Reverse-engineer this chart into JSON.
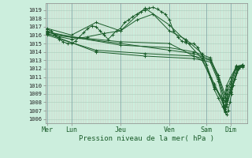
{
  "bg_color": "#cceedd",
  "grid_color_major": "#aaccbb",
  "grid_color_minor": "#ffcccc",
  "line_color": "#1a5c2a",
  "xlabel": "Pression niveau de la mer( hPa )",
  "xtick_labels": [
    "Mer",
    "Lun",
    "Jeu",
    "Ven",
    "Sam",
    "Dim"
  ],
  "xtick_positions": [
    0,
    30,
    90,
    150,
    195,
    225
  ],
  "ylim": [
    1005.5,
    1019.8
  ],
  "xlim": [
    -2,
    245
  ],
  "yticks": [
    1006,
    1007,
    1008,
    1009,
    1010,
    1011,
    1012,
    1013,
    1014,
    1015,
    1016,
    1017,
    1018,
    1019
  ],
  "lines": [
    [
      0,
      1016.7,
      5,
      1016.5,
      10,
      1016.0,
      15,
      1015.5,
      20,
      1015.2,
      25,
      1015.0,
      30,
      1015.0,
      35,
      1015.3,
      40,
      1015.8,
      45,
      1016.3,
      50,
      1016.8,
      55,
      1017.1,
      60,
      1017.0,
      65,
      1016.5,
      70,
      1016.0,
      75,
      1015.5,
      80,
      1016.0,
      85,
      1016.5,
      90,
      1016.8,
      95,
      1017.5,
      100,
      1017.8,
      105,
      1018.2,
      110,
      1018.5,
      115,
      1018.8,
      120,
      1019.0,
      125,
      1019.2,
      130,
      1019.3,
      135,
      1019.1,
      140,
      1018.8,
      145,
      1018.5,
      150,
      1017.8,
      155,
      1016.5,
      160,
      1015.8,
      165,
      1015.3,
      170,
      1015.1,
      175,
      1015.0,
      180,
      1015.0,
      185,
      1014.5,
      190,
      1013.5,
      195,
      1012.5,
      200,
      1011.0,
      205,
      1009.5,
      210,
      1008.5,
      215,
      1007.5,
      218,
      1006.8,
      220,
      1006.5,
      222,
      1007.0,
      224,
      1008.0,
      226,
      1009.0,
      228,
      1010.0,
      230,
      1010.8,
      232,
      1011.5,
      234,
      1012.0,
      236,
      1012.2,
      240,
      1012.3
    ],
    [
      0,
      1016.5,
      15,
      1015.8,
      30,
      1015.5,
      50,
      1015.8,
      70,
      1016.2,
      90,
      1016.5,
      110,
      1017.8,
      130,
      1018.5,
      150,
      1016.5,
      170,
      1015.5,
      190,
      1013.8,
      205,
      1010.0,
      215,
      1008.0,
      218,
      1007.0,
      220,
      1007.5,
      225,
      1009.2,
      235,
      1012.0,
      240,
      1012.4
    ],
    [
      0,
      1016.8,
      30,
      1016.0,
      60,
      1017.5,
      90,
      1016.5,
      120,
      1019.2,
      150,
      1017.2,
      170,
      1015.3,
      190,
      1013.2,
      205,
      1009.8,
      215,
      1008.5,
      218,
      1007.5,
      220,
      1008.2,
      225,
      1009.5,
      235,
      1012.3,
      240,
      1012.5
    ],
    [
      0,
      1016.4,
      30,
      1015.8,
      90,
      1015.2,
      150,
      1015.0,
      190,
      1013.0,
      205,
      1010.2,
      215,
      1008.2,
      218,
      1006.9,
      220,
      1007.8,
      225,
      1009.3,
      235,
      1012.1,
      240,
      1012.2
    ],
    [
      0,
      1016.2,
      60,
      1014.0,
      120,
      1013.5,
      180,
      1013.2,
      200,
      1012.8,
      210,
      1010.5,
      218,
      1007.2,
      220,
      1008.5,
      225,
      1009.8,
      232,
      1012.0,
      240,
      1012.5
    ],
    [
      0,
      1016.0,
      60,
      1014.2,
      120,
      1013.8,
      180,
      1013.5,
      200,
      1013.0,
      210,
      1010.8,
      218,
      1008.0,
      220,
      1009.0,
      225,
      1010.2,
      232,
      1012.3,
      240,
      1012.4
    ],
    [
      0,
      1016.3,
      90,
      1014.8,
      150,
      1014.5,
      180,
      1014.0,
      200,
      1013.3,
      210,
      1011.0,
      218,
      1008.5,
      220,
      1009.5,
      225,
      1010.5,
      232,
      1012.4
    ],
    [
      0,
      1016.1,
      90,
      1015.0,
      150,
      1014.2,
      180,
      1013.8,
      200,
      1013.1,
      210,
      1011.2,
      218,
      1009.0,
      220,
      1010.0,
      225,
      1011.0,
      232,
      1012.2
    ]
  ]
}
